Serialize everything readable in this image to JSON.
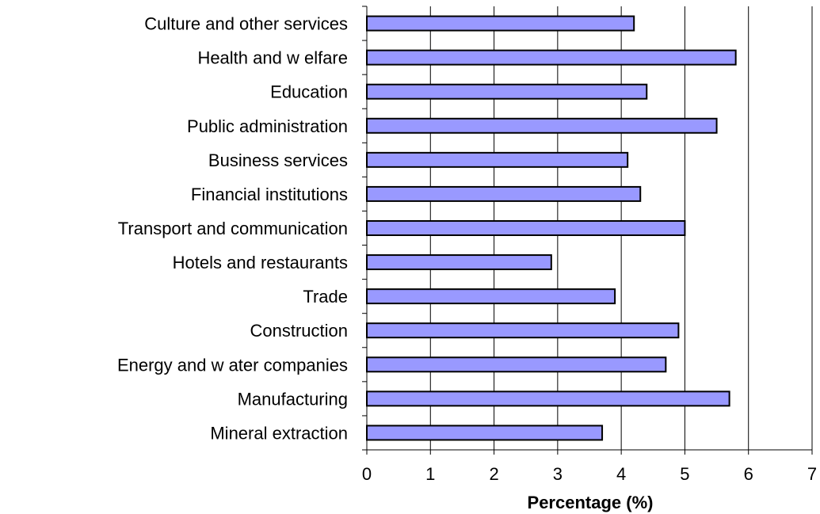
{
  "chart_data": {
    "type": "bar",
    "orientation": "horizontal",
    "categories": [
      "Culture and other services",
      "Health and w elfare",
      "Education",
      "Public administration",
      "Business services",
      "Financial institutions",
      "Transport and communication",
      "Hotels and restaurants",
      "Trade",
      "Construction",
      "Energy and w ater companies",
      "Manufacturing",
      "Mineral extraction"
    ],
    "values": [
      4.2,
      5.8,
      4.4,
      5.5,
      4.1,
      4.3,
      5.0,
      2.9,
      3.9,
      4.9,
      4.7,
      5.7,
      3.7
    ],
    "xlabel": "Percentage (%)",
    "ylabel": "",
    "xlim": [
      0,
      7
    ],
    "xticks": [
      "0",
      "1",
      "2",
      "3",
      "4",
      "5",
      "6",
      "7"
    ],
    "grid": "vertical",
    "legend": "none",
    "bar_color": "#9999ff",
    "bar_edge_color": "#000000",
    "grid_color": "#000000"
  }
}
